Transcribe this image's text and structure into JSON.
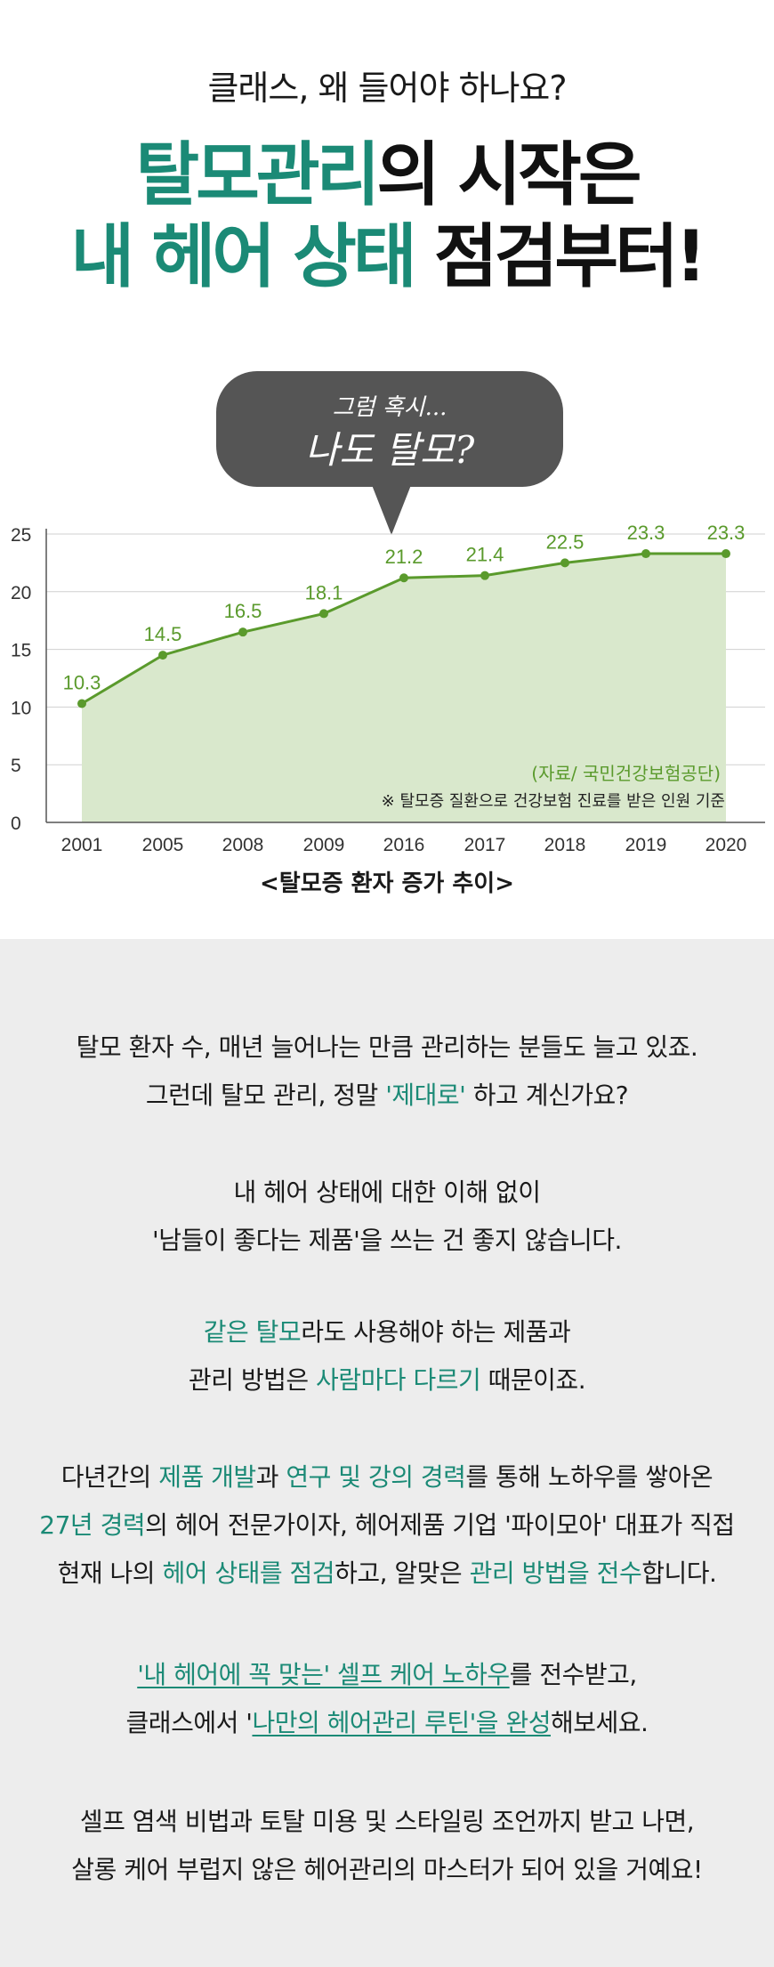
{
  "header": {
    "eyebrow": "클래스, 왜 들어야 하나요?",
    "headline_line1_teal": "탈모관리",
    "headline_line1_dark": "의 시작은",
    "headline_line2_teal": "내 헤어 상태",
    "headline_line2_dark": " 점검부터!"
  },
  "bubble": {
    "small": "그럼 혹시...",
    "big": "나도 탈모?"
  },
  "chart_data": {
    "type": "area",
    "categories": [
      "2001",
      "2005",
      "2008",
      "2009",
      "2016",
      "2017",
      "2018",
      "2019",
      "2020"
    ],
    "values": [
      10.3,
      14.5,
      16.5,
      18.1,
      21.2,
      21.4,
      22.5,
      23.3,
      23.3
    ],
    "y_ticks": [
      "0",
      "5",
      "10",
      "15",
      "20",
      "25"
    ],
    "ylim": [
      0,
      25
    ],
    "grid": true,
    "source_note": "(자료/ 국민건강보험공단)",
    "footnote": "※ 탈모증 질환으로 건강보험 진료를 받은 인원 기준",
    "line_color": "#5a9a2c",
    "fill_color": "#d9e8cc",
    "caption": "<탈모증 환자 증가 추이>"
  },
  "body": {
    "p1_a": "탈모 환자 수, 매년 늘어나는 만큼 관리하는 분들도 늘고 있죠.",
    "p1_b1": "그런데 탈모 관리, 정말 ",
    "p1_b2": "'제대로'",
    "p1_b3": " 하고 계신가요?",
    "p2_a": "내 헤어 상태에 대한 이해 없이",
    "p2_b": "'남들이 좋다는 제품'을 쓰는 건 좋지 않습니다.",
    "p3_a1": "같은 탈모",
    "p3_a2": "라도 사용해야 하는 제품과",
    "p3_b1": "관리 방법은 ",
    "p3_b2": "사람마다 다르기",
    "p3_b3": " 때문이죠.",
    "p4_a1": "다년간의 ",
    "p4_a2": "제품 개발",
    "p4_a3": "과 ",
    "p4_a4": "연구 및 강의 경력",
    "p4_a5": "를 통해 노하우를 쌓아온",
    "p4_b1": "27년 경력",
    "p4_b2": "의 헤어 전문가이자, 헤어제품 기업 '파이모아' 대표가 직접",
    "p4_c1": "현재 나의 ",
    "p4_c2": "헤어 상태를 점검",
    "p4_c3": "하고, 알맞은 ",
    "p4_c4": "관리 방법을 전수",
    "p4_c5": "합니다.",
    "p5_a1": "'내 헤어에 꼭 맞는' 셀프 케어 노하우",
    "p5_a2": "를 전수받고,",
    "p5_b1": "클래스에서 '",
    "p5_b2": "나만의 헤어관리 루틴'을 완성",
    "p5_b3": "해보세요.",
    "p6_a": "셀프 염색 비법과 토탈 미용 및 스타일링 조언까지 받고 나면,",
    "p6_b": "살롱 케어 부럽지 않은 헤어관리의 마스터가 되어 있을 거예요!"
  },
  "colors": {
    "accent": "#1b8a76",
    "bubble": "#555555",
    "bottom_bg": "#ededed"
  }
}
